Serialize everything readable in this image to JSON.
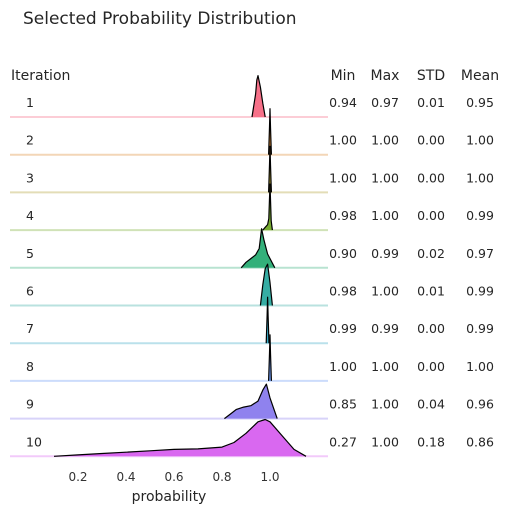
{
  "chart_data": {
    "type": "ridgeline",
    "title": "Selected Probability Distribution",
    "xlabel": "probability",
    "xlim": [
      0.1,
      1.18
    ],
    "x_ticks": [
      "0.2",
      "0.4",
      "0.6",
      "0.8",
      "1.0"
    ],
    "row_header": "Iteration",
    "stat_headers": [
      "Min",
      "Max",
      "STD",
      "Mean"
    ],
    "grid": false,
    "series": [
      {
        "name": "1",
        "color": "#f77189",
        "min": "0.94",
        "max": "0.97",
        "std": "0.01",
        "mean": "0.95",
        "kde_x": [
          0.925,
          0.94,
          0.945,
          0.95,
          0.96,
          0.97,
          0.98
        ],
        "kde_y": [
          0.0,
          0.5,
          0.8,
          0.9,
          0.65,
          0.3,
          0.0
        ]
      },
      {
        "name": "2",
        "color": "#dc8932",
        "min": "1.00",
        "max": "1.00",
        "std": "0.00",
        "mean": "1.00",
        "kde_x": [
          0.994,
          0.998,
          1.0,
          1.002,
          1.006
        ],
        "kde_y": [
          0.0,
          0.6,
          1.0,
          0.6,
          0.0
        ]
      },
      {
        "name": "3",
        "color": "#ae9d31",
        "min": "1.00",
        "max": "1.00",
        "std": "0.00",
        "mean": "1.00",
        "kde_x": [
          0.994,
          0.998,
          1.0,
          1.002,
          1.006
        ],
        "kde_y": [
          0.0,
          0.6,
          1.0,
          0.6,
          0.0
        ]
      },
      {
        "name": "4",
        "color": "#77ab31",
        "min": "0.98",
        "max": "1.00",
        "std": "0.00",
        "mean": "0.99",
        "kde_x": [
          0.97,
          0.98,
          0.99,
          0.995,
          1.0,
          1.005,
          1.01
        ],
        "kde_y": [
          0.0,
          0.06,
          0.12,
          0.25,
          1.0,
          0.2,
          0.0
        ]
      },
      {
        "name": "5",
        "color": "#33b07a",
        "min": "0.90",
        "max": "0.99",
        "std": "0.02",
        "mean": "0.97",
        "kde_x": [
          0.88,
          0.9,
          0.92,
          0.94,
          0.955,
          0.965,
          0.975,
          0.99,
          1.02
        ],
        "kde_y": [
          0.0,
          0.12,
          0.2,
          0.28,
          0.42,
          0.85,
          0.6,
          0.3,
          0.0
        ]
      },
      {
        "name": "6",
        "color": "#36ada4",
        "min": "0.98",
        "max": "1.00",
        "std": "0.01",
        "mean": "0.99",
        "kde_x": [
          0.96,
          0.97,
          0.98,
          0.99,
          1.0,
          1.01
        ],
        "kde_y": [
          0.0,
          0.45,
          0.8,
          0.9,
          0.5,
          0.0
        ]
      },
      {
        "name": "7",
        "color": "#38a9c5",
        "min": "0.99",
        "max": "0.99",
        "std": "0.00",
        "mean": "0.99",
        "kde_x": [
          0.984,
          0.988,
          0.99,
          0.992,
          0.996
        ],
        "kde_y": [
          0.0,
          0.6,
          1.0,
          0.6,
          0.0
        ]
      },
      {
        "name": "8",
        "color": "#6e9bf4",
        "min": "1.00",
        "max": "1.00",
        "std": "0.00",
        "mean": "1.00",
        "kde_x": [
          0.994,
          0.998,
          1.0,
          1.002,
          1.006
        ],
        "kde_y": [
          0.0,
          0.6,
          1.0,
          0.6,
          0.0
        ]
      },
      {
        "name": "9",
        "color": "#8f82ee",
        "min": "0.85",
        "max": "1.00",
        "std": "0.04",
        "mean": "0.96",
        "kde_x": [
          0.81,
          0.84,
          0.86,
          0.89,
          0.92,
          0.95,
          0.97,
          0.985,
          1.0,
          1.03
        ],
        "kde_y": [
          0.0,
          0.12,
          0.2,
          0.25,
          0.28,
          0.38,
          0.62,
          0.75,
          0.45,
          0.0
        ]
      },
      {
        "name": "10",
        "color": "#d968f0",
        "min": "0.27",
        "max": "1.00",
        "std": "0.18",
        "mean": "0.86",
        "kde_x": [
          0.1,
          0.2,
          0.3,
          0.4,
          0.5,
          0.6,
          0.7,
          0.8,
          0.85,
          0.9,
          0.95,
          0.98,
          1.0,
          1.05,
          1.1,
          1.15
        ],
        "kde_y": [
          0.0,
          0.03,
          0.06,
          0.09,
          0.12,
          0.15,
          0.16,
          0.2,
          0.3,
          0.5,
          0.75,
          0.8,
          0.75,
          0.45,
          0.15,
          0.0
        ]
      }
    ]
  }
}
